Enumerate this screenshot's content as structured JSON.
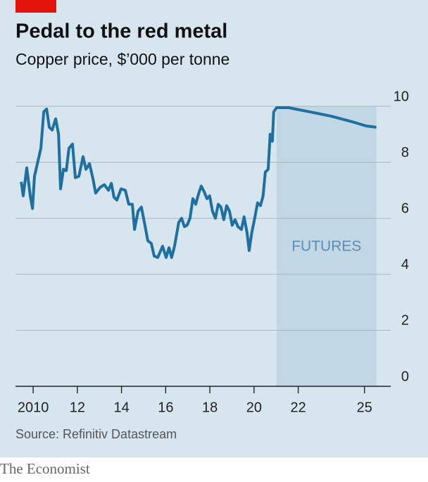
{
  "chart_data": {
    "type": "line",
    "title": "Pedal to the red metal",
    "subtitle": "Copper price, $’000 per tonne",
    "source": "Source: Refinitiv Datastream",
    "brand": "The Economist",
    "color": "#1f6f9f",
    "x": [
      2009.46,
      2009.55,
      2009.71,
      2009.87,
      2009.97,
      2010.06,
      2010.22,
      2010.35,
      2010.48,
      2010.61,
      2010.73,
      2010.86,
      2011.02,
      2011.15,
      2011.24,
      2011.37,
      2011.5,
      2011.62,
      2011.78,
      2011.91,
      2012.07,
      2012.26,
      2012.39,
      2012.55,
      2012.71,
      2012.83,
      2013.03,
      2013.22,
      2013.41,
      2013.54,
      2013.66,
      2013.79,
      2013.98,
      2014.17,
      2014.33,
      2014.49,
      2014.59,
      2014.75,
      2014.9,
      2015.06,
      2015.19,
      2015.35,
      2015.48,
      2015.64,
      2015.86,
      2016.02,
      2016.15,
      2016.27,
      2016.4,
      2016.59,
      2016.72,
      2016.85,
      2016.97,
      2017.1,
      2017.23,
      2017.36,
      2017.48,
      2017.61,
      2017.74,
      2017.87,
      2017.99,
      2018.12,
      2018.25,
      2018.38,
      2018.5,
      2018.63,
      2018.76,
      2018.89,
      2019.01,
      2019.14,
      2019.27,
      2019.43,
      2019.55,
      2019.68,
      2019.78,
      2019.9,
      2020.03,
      2020.16,
      2020.29,
      2020.41,
      2020.51,
      2020.64,
      2020.73,
      2020.83,
      2020.89,
      2021.02,
      2021.56,
      2022.52,
      2023.47,
      2024.43,
      2025.06,
      2025.54
    ],
    "values": [
      7.3,
      6.8,
      7.8,
      6.8,
      6.35,
      7.5,
      8.05,
      8.5,
      9.8,
      9.9,
      9.25,
      9.15,
      9.55,
      9.0,
      7.05,
      7.75,
      7.7,
      8.5,
      8.65,
      7.45,
      7.5,
      8.2,
      7.75,
      7.95,
      7.4,
      6.9,
      7.1,
      7.2,
      7.0,
      7.25,
      6.75,
      6.65,
      7.05,
      7.0,
      6.5,
      6.5,
      5.6,
      6.25,
      6.4,
      5.75,
      5.2,
      5.1,
      4.65,
      4.6,
      5.0,
      4.6,
      4.95,
      4.6,
      5.0,
      5.85,
      6.0,
      5.7,
      5.75,
      6.0,
      6.7,
      6.5,
      6.85,
      7.15,
      6.95,
      6.7,
      6.8,
      6.25,
      6.0,
      6.5,
      6.4,
      5.95,
      6.45,
      6.25,
      5.75,
      5.95,
      5.7,
      5.6,
      6.05,
      5.5,
      4.85,
      5.5,
      6.0,
      6.55,
      6.45,
      6.8,
      7.65,
      7.75,
      9.0,
      8.75,
      9.8,
      9.95,
      9.95,
      9.8,
      9.65,
      9.45,
      9.3,
      9.25
    ],
    "futures": {
      "label": "FUTURES",
      "start": 2021.02,
      "end": 2025.54,
      "color": "#c2d7e6"
    },
    "xlim": [
      2009.2,
      2025.9
    ],
    "xticks": [
      {
        "value": 2010,
        "label": "2010"
      },
      {
        "value": 2012,
        "label": "12"
      },
      {
        "value": 2014,
        "label": "14"
      },
      {
        "value": 2016,
        "label": "16"
      },
      {
        "value": 2018,
        "label": "18"
      },
      {
        "value": 2020,
        "label": "20"
      },
      {
        "value": 2022,
        "label": "22"
      },
      {
        "value": 2025,
        "label": "25"
      }
    ],
    "ylim": [
      0,
      10
    ],
    "yticks": [
      0,
      2,
      4,
      6,
      8,
      10
    ],
    "grid": true
  }
}
